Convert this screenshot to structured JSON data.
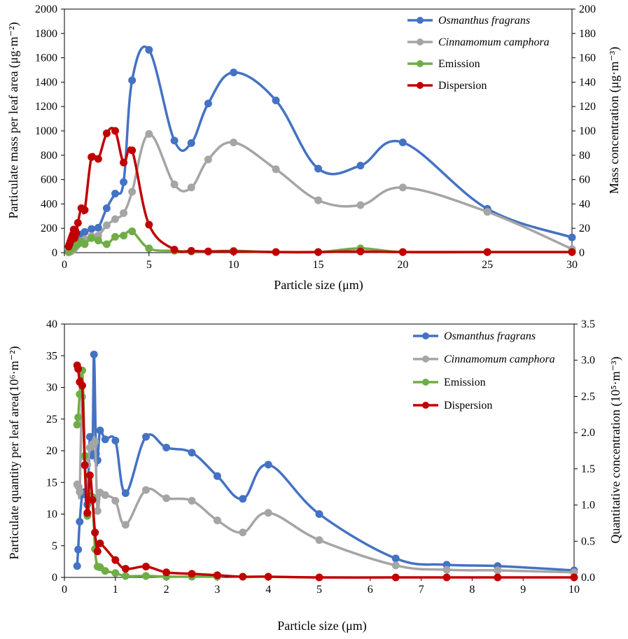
{
  "chart_data": [
    {
      "type": "line",
      "smooth": true,
      "xlabel": "Particle size (μm)",
      "ylabel": "Particulate mass per leaf area (μg·m⁻²)",
      "y2label": "Mass concentration (μg·m⁻³)",
      "xlim": [
        0,
        30
      ],
      "ylim": [
        0,
        2000
      ],
      "y2lim": [
        0,
        200
      ],
      "x_ticks": [
        "0",
        "5",
        "10",
        "15",
        "20",
        "25",
        "30"
      ],
      "y_ticks": [
        "0",
        "200",
        "400",
        "600",
        "800",
        "1000",
        "1200",
        "1400",
        "1600",
        "1800",
        "2000"
      ],
      "y2_ticks": [
        "0",
        "20",
        "40",
        "60",
        "80",
        "100",
        "120",
        "140",
        "160",
        "180",
        "200"
      ],
      "grid": false,
      "legend_position": "top-right",
      "series": [
        {
          "name": "Osmanthus fragrans",
          "italic": true,
          "axis": "left",
          "color": "#4472c4",
          "x": [
            0.25,
            0.3,
            0.35,
            0.4,
            0.45,
            0.5,
            0.55,
            0.6,
            0.65,
            0.7,
            0.8,
            1.0,
            1.2,
            1.6,
            2.0,
            2.5,
            3.0,
            3.5,
            4.0,
            5.0,
            6.5,
            7.5,
            8.5,
            10.0,
            12.5,
            15.0,
            17.5,
            20.0,
            25.0,
            30.0
          ],
          "y": [
            3,
            8,
            12,
            18,
            25,
            35,
            45,
            55,
            70,
            90,
            110,
            150,
            170,
            195,
            205,
            365,
            485,
            580,
            1415,
            1665,
            920,
            900,
            1225,
            1480,
            1250,
            690,
            715,
            905,
            360,
            125
          ]
        },
        {
          "name": "Cinnamomum camphora",
          "italic": true,
          "axis": "left",
          "color": "#a5a5a5",
          "x": [
            0.25,
            0.3,
            0.35,
            0.4,
            0.45,
            0.5,
            0.55,
            0.6,
            0.65,
            0.7,
            0.8,
            1.0,
            1.2,
            1.6,
            2.0,
            2.5,
            3.0,
            3.5,
            4.0,
            5.0,
            6.5,
            7.5,
            8.5,
            10.0,
            12.5,
            15.0,
            17.5,
            20.0,
            25.0,
            30.0
          ],
          "y": [
            2,
            5,
            8,
            12,
            16,
            22,
            28,
            35,
            45,
            55,
            70,
            95,
            110,
            135,
            140,
            225,
            275,
            325,
            500,
            975,
            560,
            535,
            765,
            905,
            685,
            430,
            390,
            535,
            335,
            30
          ]
        },
        {
          "name": "Emission",
          "italic": false,
          "axis": "right",
          "color": "#70ad47",
          "x": [
            0.25,
            0.35,
            0.45,
            0.6,
            0.8,
            1.0,
            1.2,
            1.6,
            2.0,
            2.5,
            3.0,
            3.5,
            4.0,
            5.0,
            6.5,
            7.5,
            8.5,
            10.0,
            12.5,
            15.0,
            17.5,
            20.0,
            25.0,
            30.0
          ],
          "y": [
            1,
            2,
            3,
            5,
            7,
            9,
            7,
            12,
            10,
            7,
            13,
            14,
            17.5,
            3.5,
            1.5,
            1,
            1,
            1.5,
            0.5,
            0.5,
            3.5,
            0.5,
            0.5,
            0.5
          ]
        },
        {
          "name": "Dispersion",
          "italic": false,
          "axis": "right",
          "color": "#c00000",
          "x": [
            0.25,
            0.3,
            0.35,
            0.4,
            0.45,
            0.5,
            0.55,
            0.6,
            0.65,
            0.7,
            0.8,
            1.0,
            1.2,
            1.6,
            2.0,
            2.5,
            3.0,
            3.5,
            4.0,
            5.0,
            6.5,
            7.5,
            8.5,
            10.0,
            12.5,
            15.0,
            17.5,
            20.0,
            25.0,
            30.0
          ],
          "y": [
            5,
            7,
            9,
            11,
            13,
            15,
            19,
            12,
            18,
            16,
            24.5,
            36.5,
            35,
            78.5,
            77,
            98,
            100,
            74,
            84,
            23,
            2.5,
            1.5,
            1,
            1,
            0.5,
            0.5,
            1,
            0.5,
            0.5,
            0.5
          ]
        }
      ]
    },
    {
      "type": "line",
      "smooth": true,
      "xlabel": "Particle size (μm)",
      "ylabel": "Particulate quantity per leaf area(10⁶·m⁻²)",
      "y2label": "Quantitative concentration (10⁵·m⁻³)",
      "xlim": [
        0,
        10
      ],
      "ylim": [
        0,
        40
      ],
      "y2lim": [
        0,
        3.5
      ],
      "x_ticks": [
        "0",
        "1",
        "2",
        "3",
        "4",
        "5",
        "6",
        "7",
        "8",
        "9",
        "10"
      ],
      "y_ticks": [
        "0",
        "5",
        "10",
        "15",
        "20",
        "25",
        "30",
        "35",
        "40"
      ],
      "y2_ticks": [
        "0.0",
        "0.5",
        "1.0",
        "1.5",
        "2.0",
        "2.5",
        "3.0",
        "3.5"
      ],
      "grid": false,
      "legend_position": "top-right",
      "series": [
        {
          "name": "Osmanthus fragrans",
          "italic": true,
          "axis": "left",
          "color": "#4472c4",
          "x": [
            0.25,
            0.27,
            0.3,
            0.35,
            0.4,
            0.45,
            0.5,
            0.55,
            0.58,
            0.62,
            0.65,
            0.7,
            0.8,
            1.0,
            1.2,
            1.6,
            2.0,
            2.5,
            3.0,
            3.5,
            4.0,
            5.0,
            6.5,
            7.5,
            8.5,
            10.0
          ],
          "y": [
            1.8,
            4.4,
            8.8,
            13.1,
            13.5,
            11.5,
            22.2,
            19.3,
            35.2,
            19.5,
            18.5,
            23.2,
            21.8,
            21.6,
            13.3,
            22.2,
            20.5,
            19.7,
            16.0,
            12.4,
            17.8,
            10.0,
            3.0,
            2.0,
            1.8,
            1.1
          ]
        },
        {
          "name": "Cinnamomum camphora",
          "italic": true,
          "axis": "left",
          "color": "#a5a5a5",
          "x": [
            0.25,
            0.28,
            0.3,
            0.35,
            0.4,
            0.45,
            0.5,
            0.55,
            0.6,
            0.65,
            0.7,
            0.8,
            1.0,
            1.2,
            1.6,
            2.0,
            2.5,
            3.0,
            3.5,
            4.0,
            5.0,
            6.5,
            7.5,
            8.5,
            10.0
          ],
          "y": [
            14.7,
            14.3,
            13.5,
            28.5,
            19.0,
            17.8,
            20.5,
            21.0,
            21.4,
            10.5,
            13.4,
            13.0,
            12.1,
            8.3,
            13.8,
            12.5,
            12.1,
            9.0,
            7.1,
            10.2,
            5.9,
            1.9,
            1.2,
            1.1,
            0.8
          ]
        },
        {
          "name": "Emission",
          "italic": false,
          "axis": "right",
          "color": "#70ad47",
          "x": [
            0.25,
            0.27,
            0.3,
            0.35,
            0.4,
            0.45,
            0.5,
            0.55,
            0.6,
            0.65,
            0.7,
            0.8,
            1.0,
            1.2,
            1.6,
            2.0,
            2.5,
            3.0
          ],
          "y": [
            2.11,
            2.21,
            2.53,
            2.86,
            1.68,
            0.85,
            1.09,
            1.11,
            0.39,
            0.15,
            0.14,
            0.09,
            0.06,
            0.02,
            0.02,
            0.01,
            0.01,
            0.01
          ]
        },
        {
          "name": "Dispersion",
          "italic": false,
          "axis": "right",
          "color": "#c00000",
          "x": [
            0.25,
            0.27,
            0.3,
            0.35,
            0.4,
            0.45,
            0.5,
            0.55,
            0.6,
            0.65,
            0.7,
            1.0,
            1.2,
            1.6,
            2.0,
            2.5,
            3.0,
            3.5,
            4.0,
            5.0,
            6.5,
            7.5,
            8.5,
            10.0
          ],
          "y": [
            2.93,
            2.88,
            2.7,
            2.65,
            1.55,
            0.89,
            1.41,
            1.07,
            0.62,
            0.36,
            0.47,
            0.24,
            0.12,
            0.15,
            0.07,
            0.05,
            0.03,
            0.01,
            0.01,
            0.0,
            0.0,
            0.0,
            0.0,
            0.0
          ]
        }
      ]
    }
  ]
}
